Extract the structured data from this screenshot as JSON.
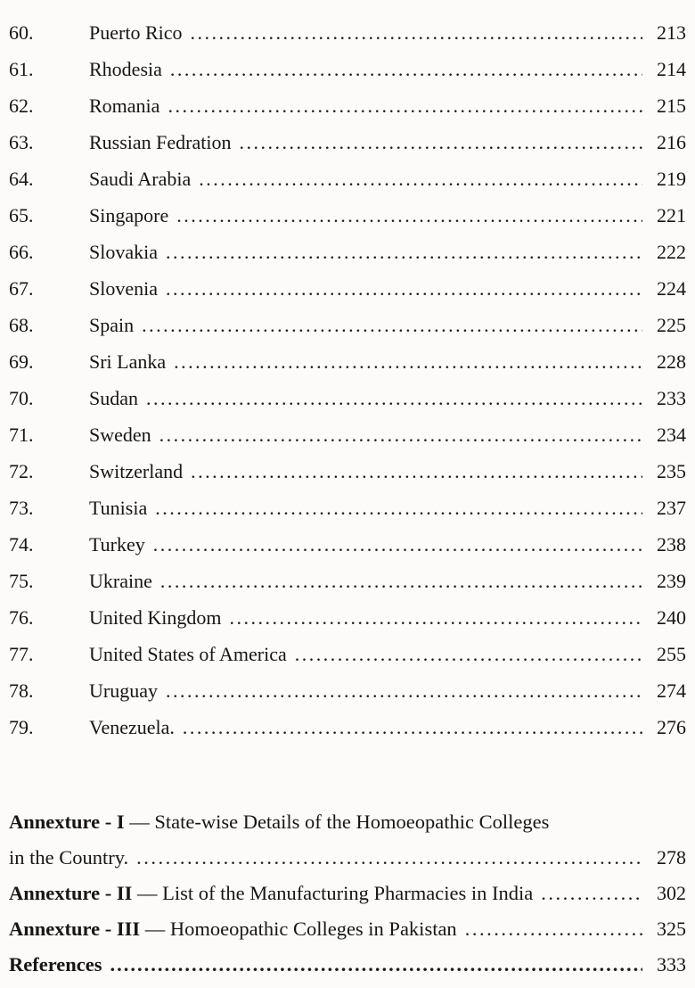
{
  "toc": {
    "entries": [
      {
        "num": "60.",
        "title": "Puerto Rico",
        "page": "213"
      },
      {
        "num": "61.",
        "title": "Rhodesia",
        "page": "214"
      },
      {
        "num": "62.",
        "title": "Romania",
        "page": "215"
      },
      {
        "num": "63.",
        "title": "Russian Fedration",
        "page": "216"
      },
      {
        "num": "64.",
        "title": "Saudi Arabia",
        "page": "219"
      },
      {
        "num": "65.",
        "title": "Singapore",
        "page": "221"
      },
      {
        "num": "66.",
        "title": "Slovakia",
        "page": "222"
      },
      {
        "num": "67.",
        "title": "Slovenia",
        "page": "224"
      },
      {
        "num": "68.",
        "title": "Spain",
        "page": "225"
      },
      {
        "num": "69.",
        "title": "Sri Lanka",
        "page": "228"
      },
      {
        "num": "70.",
        "title": "Sudan",
        "page": "233"
      },
      {
        "num": "71.",
        "title": "Sweden",
        "page": "234"
      },
      {
        "num": "72.",
        "title": "Switzerland",
        "page": "235"
      },
      {
        "num": "73.",
        "title": "Tunisia",
        "page": "237"
      },
      {
        "num": "74.",
        "title": "Turkey",
        "page": "238"
      },
      {
        "num": "75.",
        "title": "Ukraine",
        "page": "239"
      },
      {
        "num": "76.",
        "title": "United Kingdom",
        "page": "240"
      },
      {
        "num": "77.",
        "title": "United States of America",
        "page": "255"
      },
      {
        "num": "78.",
        "title": "Uruguay",
        "page": "274"
      },
      {
        "num": "79.",
        "title": "Venezuela.",
        "page": "276"
      }
    ],
    "annexures": [
      {
        "label": "Annexture - I",
        "text_line1": "— State-wise Details of the Homoeopathic Colleges",
        "text_line2": "in the Country.",
        "page": "278"
      },
      {
        "label": "Annexture - II",
        "text": "— List of the Manufacturing Pharmacies in India",
        "page": "302"
      },
      {
        "label": "Annexture - III",
        "text": "— Homoeopathic Colleges in Pakistan",
        "page": "325"
      }
    ],
    "references": {
      "label": "References",
      "page": "333"
    }
  }
}
